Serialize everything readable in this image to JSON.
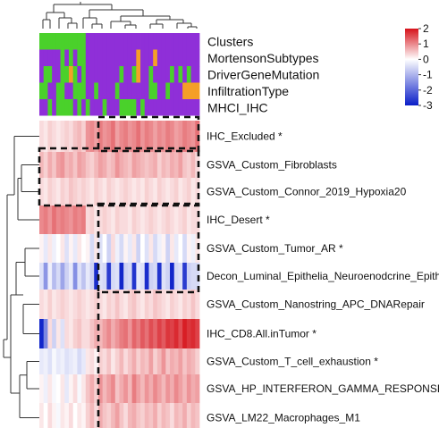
{
  "chart_data": {
    "type": "heatmap",
    "row_labels": [
      "IHC_Excluded *",
      "GSVA_Custom_Fibroblasts",
      "GSVA_Custom_Connor_2019_Hypoxia20",
      "IHC_Desert *",
      "GSVA_Custom_Tumor_AR *",
      "Decon_Luminal_Epithelia_Neuroenodcrine_Epithe",
      "GSVA_Custom_Nanostring_APC_DNARepair",
      "IHC_CD8.All.inTumor *",
      "GSVA_Custom_T_cell_exhaustion *",
      "GSVA_HP_INTERFERON_GAMMA_RESPONSE",
      "GSVA_LM22_Macrophages_M1"
    ],
    "annotation_labels": [
      "Clusters",
      "MortensonSubtypes",
      "DriverGeneMutation",
      "InfiltrationType",
      "MHCI_IHC"
    ],
    "annotation_colors": {
      "green": "#4ad12b",
      "purple": "#8f2fd8",
      "orange": "#f59f27"
    },
    "annotations": [
      [
        "G",
        "G",
        "G",
        "G",
        "G",
        "G",
        "G",
        "G",
        "G",
        "G",
        "G",
        "P",
        "P",
        "P",
        "P",
        "P",
        "P",
        "P",
        "P",
        "P",
        "P",
        "P",
        "P",
        "P",
        "P",
        "P",
        "P",
        "P",
        "P",
        "P",
        "P",
        "P",
        "P",
        "P",
        "P",
        "P",
        "P",
        "P"
      ],
      [
        "P",
        "P",
        "P",
        "P",
        "P",
        "G",
        "P",
        "G",
        "P",
        "G",
        "G",
        "P",
        "P",
        "P",
        "P",
        "P",
        "P",
        "P",
        "P",
        "P",
        "P",
        "P",
        "P",
        "O",
        "P",
        "P",
        "P",
        "O",
        "P",
        "P",
        "P",
        "P",
        "P",
        "P",
        "P",
        "P",
        "P",
        "P"
      ],
      [
        "P",
        "G",
        "G",
        "P",
        "P",
        "G",
        "G",
        "O",
        "G",
        "P",
        "G",
        "P",
        "P",
        "P",
        "P",
        "P",
        "P",
        "P",
        "P",
        "G",
        "P",
        "P",
        "G",
        "O",
        "P",
        "P",
        "G",
        "P",
        "P",
        "P",
        "P",
        "G",
        "P",
        "G",
        "P",
        "G",
        "P",
        "P"
      ],
      [
        "G",
        "G",
        "P",
        "P",
        "G",
        "G",
        "P",
        "P",
        "G",
        "G",
        "G",
        "P",
        "P",
        "G",
        "P",
        "P",
        "P",
        "P",
        "G",
        "P",
        "P",
        "P",
        "P",
        "P",
        "P",
        "P",
        "G",
        "G",
        "P",
        "P",
        "G",
        "P",
        "P",
        "P",
        "O",
        "O",
        "O",
        "O"
      ],
      [
        "P",
        "P",
        "G",
        "P",
        "G",
        "G",
        "G",
        "G",
        "P",
        "G",
        "P",
        "G",
        "P",
        "P",
        "P",
        "G",
        "P",
        "P",
        "P",
        "G",
        "G",
        "G",
        "G",
        "P",
        "G",
        "P",
        "P",
        "P",
        "P",
        "P",
        "P",
        "P",
        "P",
        "P",
        "P",
        "P",
        "P",
        "P"
      ]
    ],
    "legend": {
      "ticks": [
        2,
        1,
        0,
        -1,
        -2,
        -3
      ],
      "min": -3,
      "max": 2,
      "low_color": "#0a1ec8",
      "mid_color": "#ffffff",
      "high_color": "#d6121a",
      "position": "top-right"
    },
    "values": [
      [
        0.3,
        0.2,
        0.4,
        0.3,
        0.2,
        0.3,
        0.4,
        0.3,
        0.5,
        0.6,
        0.4,
        0.9,
        1.0,
        0.8,
        1.1,
        0.9,
        1.0,
        1.2,
        0.8,
        1.0,
        1.1,
        0.9,
        1.0,
        1.2,
        0.9,
        1.1,
        1.0,
        0.8,
        1.0,
        0.9,
        1.1,
        1.0,
        0.8,
        0.9,
        1.1,
        1.0,
        0.9,
        1.2
      ],
      [
        0.6,
        0.4,
        0.7,
        0.5,
        0.8,
        0.9,
        0.6,
        0.7,
        0.5,
        0.8,
        0.7,
        0.5,
        0.4,
        0.6,
        0.8,
        0.7,
        0.5,
        0.6,
        0.9,
        0.7,
        0.6,
        0.5,
        0.8,
        0.7,
        0.6,
        0.5,
        0.6,
        0.7,
        0.4,
        0.6,
        0.5,
        0.7,
        0.6,
        0.8,
        0.5,
        0.4,
        0.6,
        0.3
      ],
      [
        0.3,
        0.2,
        0.4,
        0.3,
        0.2,
        0.4,
        0.3,
        0.5,
        0.4,
        0.3,
        0.4,
        0.3,
        0.2,
        0.4,
        0.3,
        0.2,
        0.4,
        0.3,
        0.2,
        0.3,
        0.4,
        0.3,
        0.2,
        0.3,
        0.2,
        0.4,
        0.3,
        0.2,
        0.4,
        0.3,
        0.2,
        0.3,
        0.4,
        0.2,
        0.3,
        0.4,
        0.2,
        0.3
      ],
      [
        1.0,
        1.1,
        0.9,
        1.2,
        1.0,
        1.1,
        1.0,
        0.9,
        1.1,
        1.0,
        1.1,
        0.3,
        0.4,
        0.2,
        0.3,
        0.4,
        0.3,
        0.2,
        0.4,
        0.3,
        0.3,
        0.2,
        0.4,
        0.3,
        0.2,
        0.3,
        0.4,
        0.3,
        0.2,
        0.3,
        0.4,
        0.3,
        0.2,
        0.3,
        0.4,
        0.2,
        0.3,
        0.3
      ],
      [
        0.1,
        -0.3,
        0.2,
        -0.2,
        0.0,
        0.2,
        -0.4,
        0.1,
        -0.3,
        0.2,
        0.0,
        0.1,
        -0.5,
        0.2,
        -0.4,
        0.0,
        -0.6,
        0.3,
        -0.2,
        -0.5,
        0.1,
        -0.3,
        0.2,
        -0.6,
        0.0,
        -0.4,
        0.2,
        -0.5,
        -0.2,
        0.1,
        -0.6,
        0.2,
        -0.3,
        0.0,
        -0.5,
        0.1,
        -0.2,
        0.2
      ],
      [
        -0.4,
        -1.4,
        -0.2,
        -0.9,
        -0.5,
        -1.2,
        -0.6,
        -0.3,
        -1.5,
        -0.4,
        -0.8,
        -0.3,
        -0.6,
        -2.8,
        -0.4,
        -0.5,
        -2.6,
        -0.5,
        -0.4,
        -2.9,
        -0.6,
        -0.5,
        -2.7,
        -0.3,
        -0.4,
        -2.8,
        -0.6,
        -0.5,
        -2.7,
        -0.4,
        -0.6,
        -2.9,
        -0.5,
        -0.4,
        -2.6,
        -0.6,
        -0.5,
        -0.5
      ],
      [
        0.3,
        0.2,
        0.4,
        0.2,
        0.3,
        0.4,
        0.3,
        0.2,
        0.3,
        0.4,
        0.3,
        0.2,
        0.3,
        0.4,
        0.3,
        0.2,
        0.4,
        0.3,
        0.5,
        0.3,
        0.2,
        0.4,
        0.5,
        0.3,
        0.2,
        0.4,
        0.3,
        0.5,
        0.4,
        0.3,
        0.2,
        0.4,
        0.3,
        0.2,
        0.4,
        0.3,
        0.5,
        0.3
      ],
      [
        -2.9,
        -1.6,
        0.3,
        -0.6,
        0.2,
        -0.4,
        0.3,
        0.2,
        0.4,
        0.5,
        0.3,
        0.3,
        0.5,
        0.7,
        0.6,
        0.8,
        1.0,
        0.7,
        0.9,
        1.1,
        1.2,
        0.9,
        1.3,
        1.1,
        1.4,
        1.2,
        1.5,
        1.3,
        1.6,
        1.4,
        1.7,
        1.6,
        1.8,
        1.5,
        1.9,
        1.7,
        1.8,
        1.6
      ],
      [
        -0.3,
        -0.2,
        -0.4,
        -0.1,
        -0.3,
        -0.2,
        -0.4,
        -0.3,
        -0.2,
        -0.5,
        -0.3,
        0.2,
        0.3,
        0.1,
        0.4,
        0.3,
        0.5,
        0.2,
        0.4,
        0.6,
        0.3,
        0.5,
        0.7,
        0.4,
        0.6,
        0.5,
        0.8,
        0.4,
        0.6,
        0.9,
        0.5,
        0.7,
        0.6,
        0.8,
        0.5,
        0.7,
        0.6,
        0.4
      ],
      [
        0.1,
        -0.2,
        0.2,
        -0.1,
        0.0,
        0.2,
        -0.3,
        0.1,
        0.3,
        -0.1,
        0.2,
        0.5,
        0.7,
        0.4,
        0.9,
        0.6,
        0.8,
        1.0,
        0.5,
        0.7,
        0.9,
        0.6,
        1.1,
        0.8,
        0.6,
        0.9,
        0.7,
        1.0,
        0.8,
        0.6,
        0.9,
        0.7,
        1.0,
        0.8,
        0.6,
        0.9,
        0.7,
        0.8
      ],
      [
        0.2,
        0.0,
        0.3,
        0.1,
        -0.1,
        0.2,
        0.1,
        0.3,
        0.0,
        0.2,
        0.1,
        0.4,
        0.6,
        0.3,
        0.7,
        0.5,
        0.4,
        0.6,
        0.8,
        0.5,
        0.3,
        0.6,
        0.7,
        0.5,
        0.4,
        0.6,
        0.5,
        0.7,
        0.4,
        0.6,
        0.5,
        0.3,
        0.6,
        0.5,
        0.7,
        0.4,
        0.6,
        0.5
      ]
    ]
  }
}
